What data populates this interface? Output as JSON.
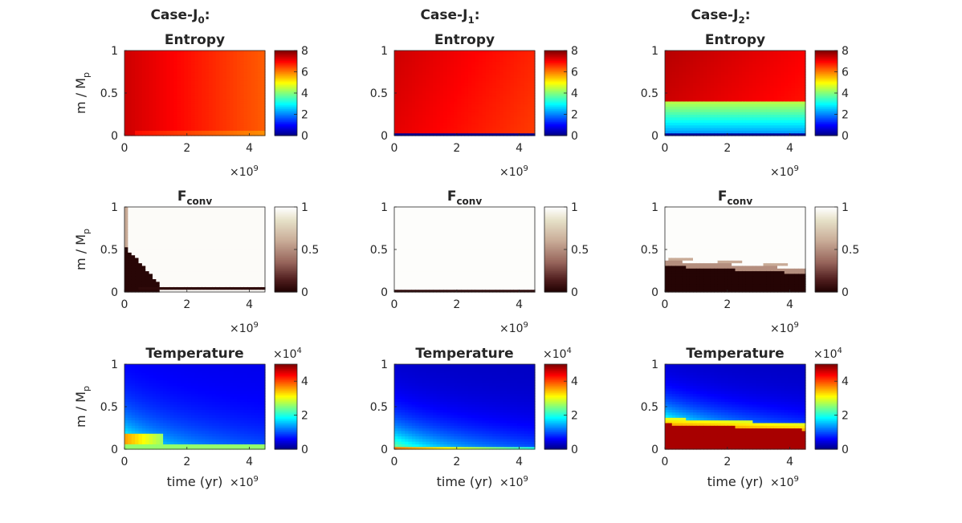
{
  "chart_data": {
    "type": "heatmap",
    "grid": [
      3,
      3
    ],
    "cases": [
      {
        "name": "Case-J",
        "subscript": "0",
        "suffix": ":"
      },
      {
        "name": "Case-J",
        "subscript": "1",
        "suffix": ":"
      },
      {
        "name": "Case-J",
        "subscript": "2",
        "suffix": ":"
      }
    ],
    "rows": [
      {
        "quantity": "Entropy",
        "title": "Entropy",
        "colormap": "jet",
        "clim": [
          0,
          8
        ],
        "colorbar_ticks": [
          "0",
          "2",
          "4",
          "6",
          "8"
        ],
        "colorbar_exponent": null
      },
      {
        "quantity": "Fconv",
        "title": "F",
        "title_subscript": "conv",
        "colormap": "pink",
        "clim": [
          0,
          1
        ],
        "colorbar_ticks": [
          "0",
          "0.5",
          "1"
        ],
        "colorbar_exponent": null
      },
      {
        "quantity": "Temperature",
        "title": "Temperature",
        "colormap": "jet",
        "clim": [
          0,
          5
        ],
        "colorbar_ticks": [
          "0",
          "2",
          "4"
        ],
        "colorbar_exponent": {
          "base": "×10",
          "power": "4"
        }
      }
    ],
    "xlabel": "time (yr)",
    "ylabel": {
      "text": "m / M",
      "subscript": "p"
    },
    "xlim": [
      0,
      4.5
    ],
    "xticks": [
      "0",
      "2",
      "4"
    ],
    "x_exponent": {
      "base": "×10",
      "power": "9"
    },
    "ylim": [
      0,
      1
    ],
    "yticks": [
      "0",
      "0.5",
      "1"
    ],
    "descriptions": {
      "Entropy-J0": "values ~6-7.5 throughout, higher (~7.3) at early times, decreasing to ~6.5 at late times",
      "Entropy-J1": "values ~6.5-7.5 throughout except a thin layer ~0 at m/Mp<0.02",
      "Entropy-J2": "outer envelope ~7 (m/Mp>0.4), gradient from ~2 to ~4.5 in core region",
      "Fconv-J0": "~1 everywhere except ~0 in core at early times (<1e9 yr) and thin bottom layer",
      "Fconv-J1": "~1 everywhere except near t=0 and thin layer at bottom",
      "Fconv-J2": "~1 in outer envelope, ~0 below m/Mp~0.3",
      "Temperature-J0": "up to ~3.5e4 in core at early times, ~1e4 in envelope",
      "Temperature-J1": "hot thin layer near bottom, gradient from ~2.5e4 to ~0.5e4",
      "Temperature-J2": "core ~5e4 below m/Mp~0.3, envelope ~0.5e4-2e4"
    }
  }
}
